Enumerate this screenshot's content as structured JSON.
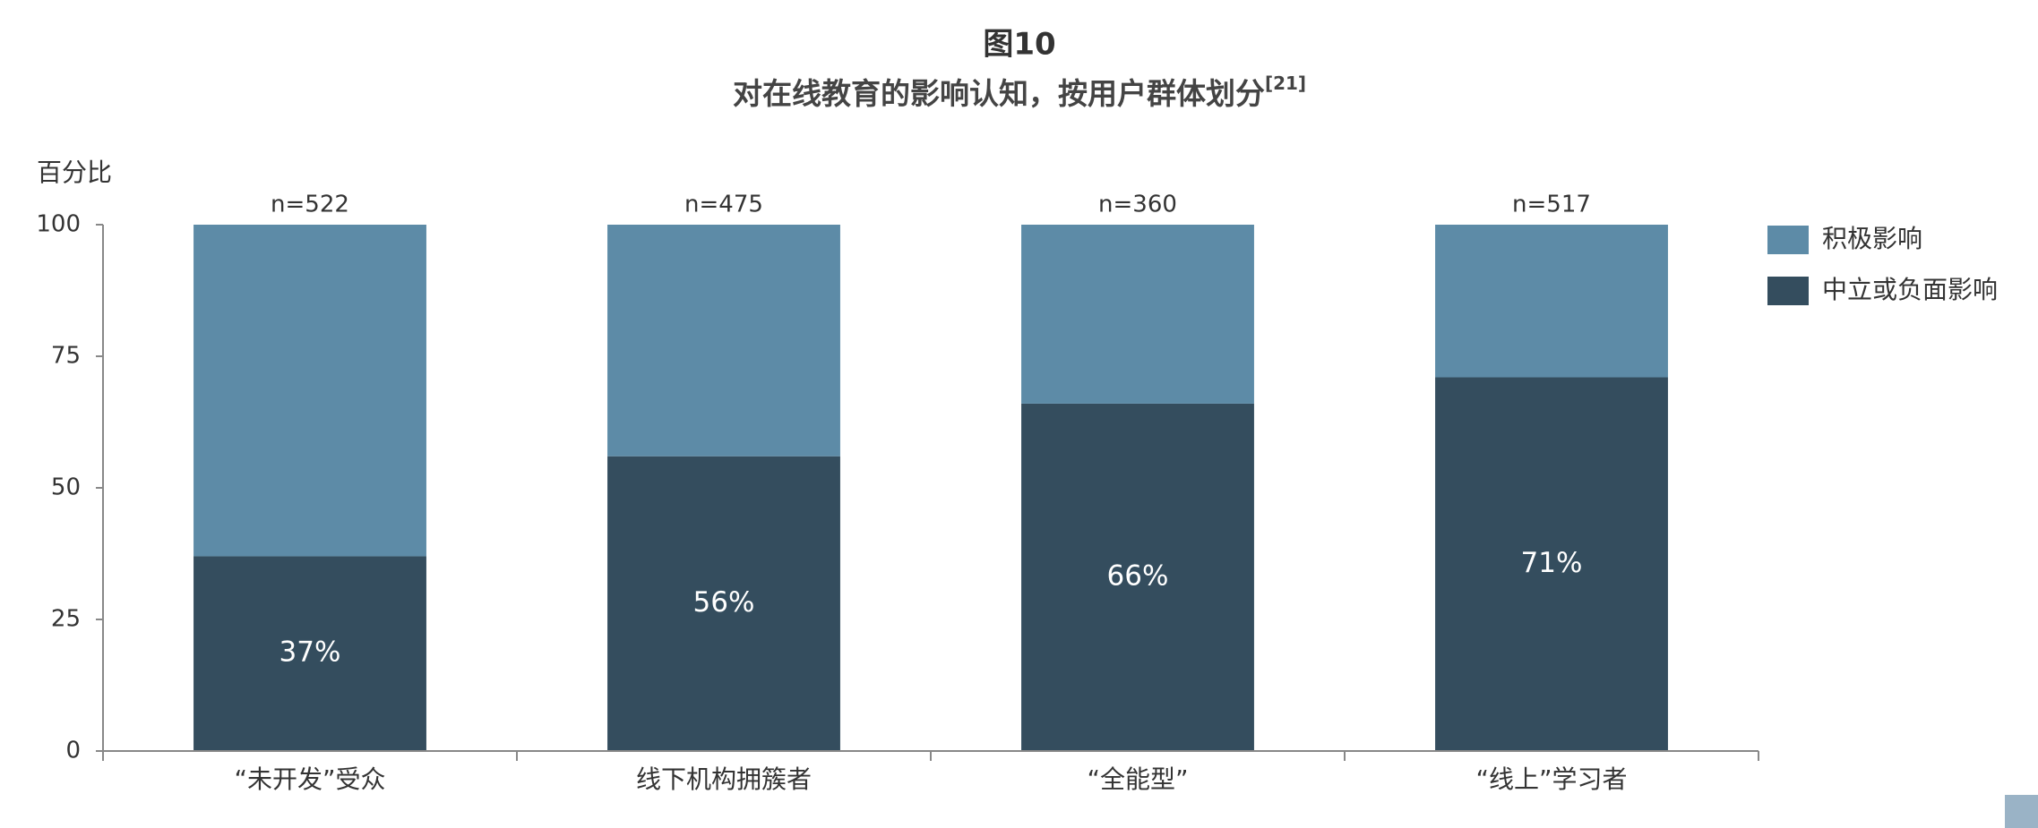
{
  "chart_data": {
    "type": "stacked_bar",
    "title": "图10",
    "subtitle": "对在线教育的影响认知，按用户群体划分",
    "subtitle_ref": "[21]",
    "y_label": "百分比",
    "categories": [
      "“未开发”受众",
      "线下机构拥簇者",
      "“全能型”",
      "“线上”学习者"
    ],
    "annotations": [
      "n=522",
      "n=475",
      "n=360",
      "n=517"
    ],
    "series": [
      {
        "name": "中立或负面影响",
        "color": "#344d5e",
        "values": [
          37,
          56,
          66,
          71
        ],
        "value_labels": [
          "37%",
          "56%",
          "66%",
          "71%"
        ]
      },
      {
        "name": "积极影响",
        "color": "#5d8ba7",
        "values": [
          63,
          44,
          34,
          29
        ]
      }
    ],
    "ylim": [
      0,
      100
    ],
    "yticks": [
      0,
      25,
      50,
      75,
      100
    ],
    "legend": "right"
  }
}
